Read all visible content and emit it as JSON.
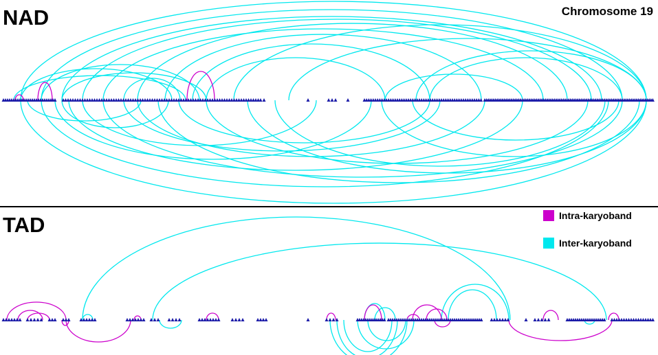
{
  "title": "Chromosome 19",
  "panels": [
    {
      "label": "NAD"
    },
    {
      "label": "TAD"
    }
  ],
  "legend": [
    {
      "label": "Intra-karyoband",
      "color": "#cc00cc"
    },
    {
      "label": "Inter-karyoband",
      "color": "#00e8ee"
    }
  ]
}
